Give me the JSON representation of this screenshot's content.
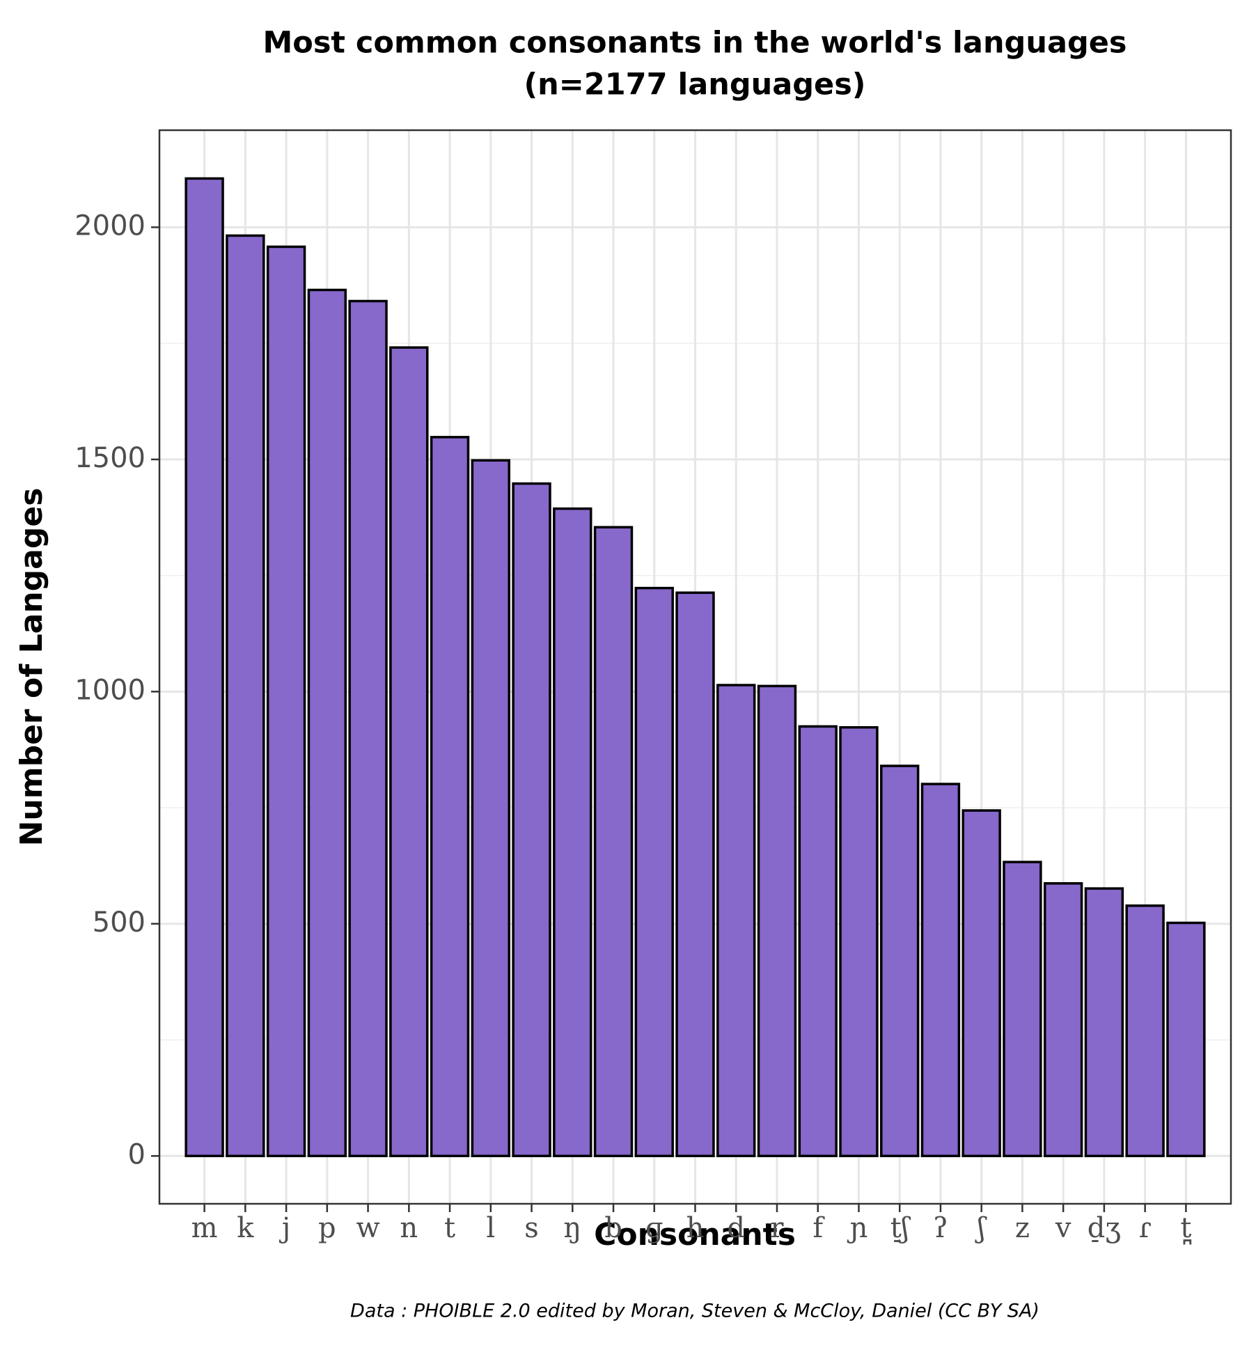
{
  "chart_data": {
    "type": "bar",
    "title": "Most common consonants in the world's languages",
    "subtitle": "(n=2177 languages)",
    "x_label": "Consonants",
    "y_label": "Number of Langages",
    "caption": "Data : PHOIBLE 2.0 edited by Moran, Steven & McCloy, Daniel (CC BY SA)",
    "categories": [
      "m",
      "k",
      "j",
      "p",
      "w",
      "n",
      "t",
      "l",
      "s",
      "ŋ",
      "b",
      "ɡ",
      "h",
      "d",
      "r",
      "f",
      "ɲ",
      "t̠ʃ",
      "ʔ",
      "ʃ",
      "z",
      "v",
      "d̠ʒ",
      "ɾ",
      "t̪"
    ],
    "values": [
      2105,
      1982,
      1958,
      1865,
      1841,
      1741,
      1548,
      1498,
      1448,
      1394,
      1354,
      1223,
      1213,
      1014,
      1012,
      925,
      923,
      840,
      801,
      744,
      633,
      587,
      576,
      539,
      502
    ],
    "color": "#8768cb",
    "ylim": [
      -103,
      2209
    ],
    "yticks": [
      0,
      500,
      1000,
      1500,
      2000
    ],
    "grid": true
  }
}
